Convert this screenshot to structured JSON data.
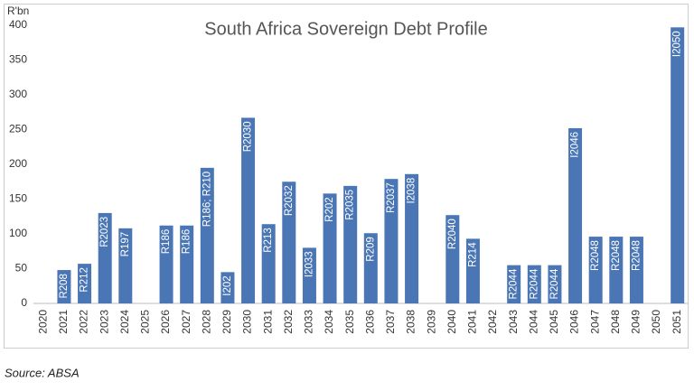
{
  "chart_data": {
    "type": "bar",
    "title": "South Africa Sovereign Debt Profile",
    "y_axis_label": "R'bn",
    "source": "Source: ABSA",
    "categories": [
      "2020",
      "2021",
      "2022",
      "2023",
      "2024",
      "2025",
      "2026",
      "2027",
      "2028",
      "2029",
      "2030",
      "2031",
      "2032",
      "2033",
      "2034",
      "2035",
      "2036",
      "2037",
      "2038",
      "2039",
      "2040",
      "2041",
      "2042",
      "2043",
      "2044",
      "2045",
      "2046",
      "2047",
      "2048",
      "2049",
      "2050",
      "2051"
    ],
    "values": [
      null,
      48,
      57,
      130,
      108,
      null,
      112,
      112,
      195,
      45,
      267,
      114,
      175,
      80,
      158,
      169,
      101,
      179,
      186,
      null,
      127,
      93,
      null,
      55,
      55,
      55,
      252,
      96,
      96,
      96,
      null,
      397
    ],
    "bar_labels": [
      null,
      "R208",
      "R212",
      "R2023",
      "R197",
      null,
      "R186",
      "R186",
      "R186; R210",
      "I202",
      "R2030",
      "R213",
      "R2032",
      "I2033",
      "R202",
      "R2035",
      "R209",
      "R2037",
      "I2038",
      null,
      "R2040",
      "R214",
      null,
      "R2044",
      "R2044",
      "R2044",
      "I2046",
      "R2048",
      "R2048",
      "R2048",
      null,
      "I2050"
    ],
    "color": "#4a76b5",
    "ylim": [
      0,
      400
    ],
    "yticks": [
      0,
      50,
      100,
      150,
      200,
      250,
      300,
      350,
      400
    ],
    "grid": false
  }
}
